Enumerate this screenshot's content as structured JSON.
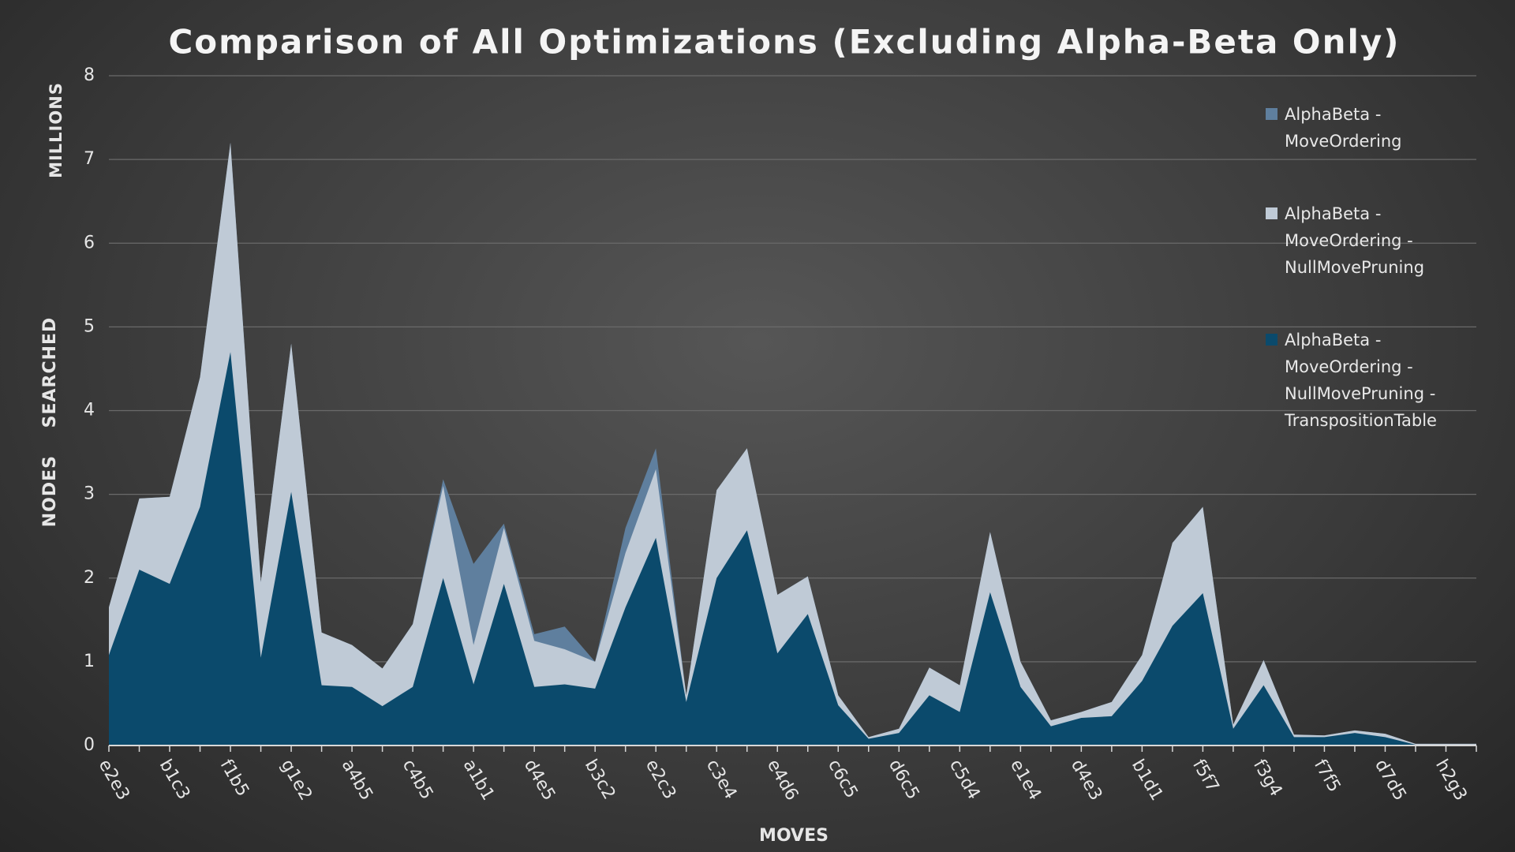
{
  "chart_data": {
    "type": "area",
    "title": "Comparison of All Optimizations (Excluding Alpha-Beta Only)",
    "y_axis_label": "NODES    SEARCHED",
    "y_axis_unit": "MILLIONS",
    "x_axis_label": "MOVES",
    "categories": [
      "e2e3",
      null,
      "b1c3",
      null,
      "f1b5",
      null,
      "g1e2",
      null,
      "a4b5",
      null,
      "c4b5",
      null,
      "a1b1",
      null,
      "d4e5",
      null,
      "b3c2",
      null,
      "e2c3",
      null,
      "c3e4",
      null,
      "e4d6",
      null,
      "c6c5",
      null,
      "d6c5",
      null,
      "c5d4",
      null,
      "e1e4",
      null,
      "d4e3",
      null,
      "b1d1",
      null,
      "f5f7",
      null,
      "f3g4",
      null,
      "f7f5",
      null,
      "d7d5",
      null,
      "h2g3",
      null
    ],
    "ylim": [
      0,
      8
    ],
    "yticks": [
      0,
      1,
      2,
      3,
      4,
      5,
      6,
      7,
      8
    ],
    "grid": true,
    "legend": "right",
    "series": [
      {
        "name": "AlphaBeta - MoveOrdering",
        "color": "#5f7f9e",
        "values": [
          1.65,
          2.95,
          2.97,
          4.4,
          7.2,
          1.95,
          4.8,
          1.35,
          1.2,
          0.92,
          1.45,
          3.18,
          2.17,
          2.65,
          1.33,
          1.42,
          1.0,
          2.6,
          3.55,
          0.6,
          3.05,
          3.55,
          1.8,
          2.02,
          0.6,
          0.1,
          0.2,
          0.93,
          0.72,
          2.55,
          1.0,
          0.3,
          0.4,
          0.52,
          1.08,
          2.42,
          2.85,
          0.25,
          1.02,
          0.13,
          0.12,
          0.18,
          0.14,
          0.02,
          0.02,
          0.02
        ]
      },
      {
        "name": "AlphaBeta - MoveOrdering - NullMovePruning",
        "color": "#bfcad6",
        "values": [
          1.65,
          2.95,
          2.97,
          4.4,
          7.2,
          1.95,
          4.8,
          1.35,
          1.2,
          0.92,
          1.45,
          3.1,
          1.2,
          2.6,
          1.25,
          1.15,
          1.0,
          2.3,
          3.3,
          0.6,
          3.05,
          3.55,
          1.8,
          2.02,
          0.6,
          0.1,
          0.2,
          0.93,
          0.72,
          2.55,
          1.0,
          0.3,
          0.4,
          0.52,
          1.08,
          2.42,
          2.85,
          0.25,
          1.02,
          0.13,
          0.12,
          0.18,
          0.14,
          0.02,
          0.02,
          0.02
        ]
      },
      {
        "name": "AlphaBeta - MoveOrdering - NullMovePruning - TranspositionTable",
        "color": "#0b4a6c",
        "values": [
          1.08,
          2.1,
          1.93,
          2.85,
          4.7,
          1.05,
          3.03,
          0.72,
          0.7,
          0.47,
          0.7,
          2.0,
          0.73,
          1.93,
          0.7,
          0.73,
          0.68,
          1.65,
          2.48,
          0.52,
          2.0,
          2.57,
          1.1,
          1.57,
          0.48,
          0.08,
          0.15,
          0.6,
          0.4,
          1.83,
          0.7,
          0.23,
          0.33,
          0.35,
          0.77,
          1.43,
          1.82,
          0.2,
          0.72,
          0.1,
          0.1,
          0.15,
          0.1,
          0.01,
          0.01,
          0.01
        ]
      }
    ]
  }
}
